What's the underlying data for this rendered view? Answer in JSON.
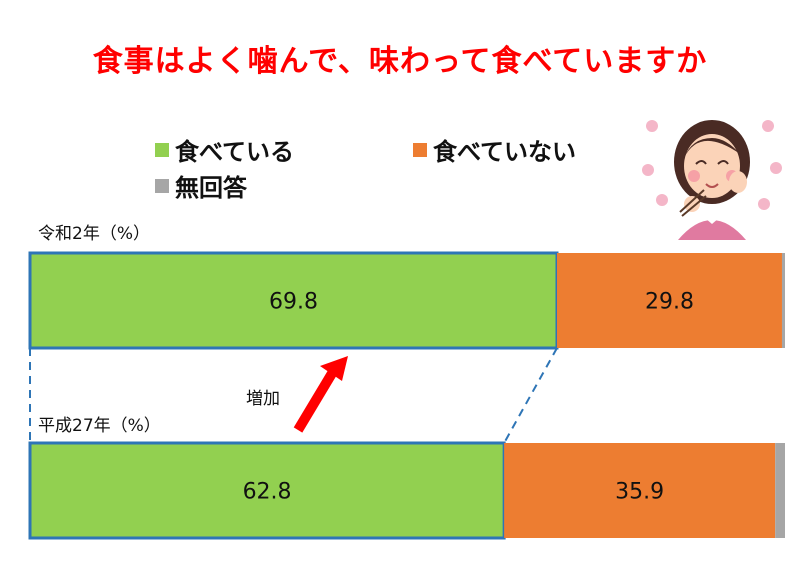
{
  "colors": {
    "title": "#ff0000",
    "eating": "#92d050",
    "not_eating": "#ed7d31",
    "no_answer": "#a6a6a6",
    "outline": "#2e75b6",
    "arrow": "#ff0000"
  },
  "icons": {
    "illustration": "woman-eating-happily-illustration"
  },
  "chart_data": {
    "type": "bar",
    "orientation": "horizontal",
    "stacked": true,
    "title": "食事はよく噛んで、味わって食べていますか",
    "categories": [
      "令和2年（%）",
      "平成27年（%）"
    ],
    "series": [
      {
        "name": "食べている",
        "values": [
          69.8,
          62.8
        ]
      },
      {
        "name": "食べていない",
        "values": [
          29.8,
          35.9
        ]
      },
      {
        "name": "無回答",
        "values": [
          0.4,
          1.3
        ]
      }
    ],
    "annotation": "増加",
    "xlim": [
      0,
      100
    ]
  }
}
